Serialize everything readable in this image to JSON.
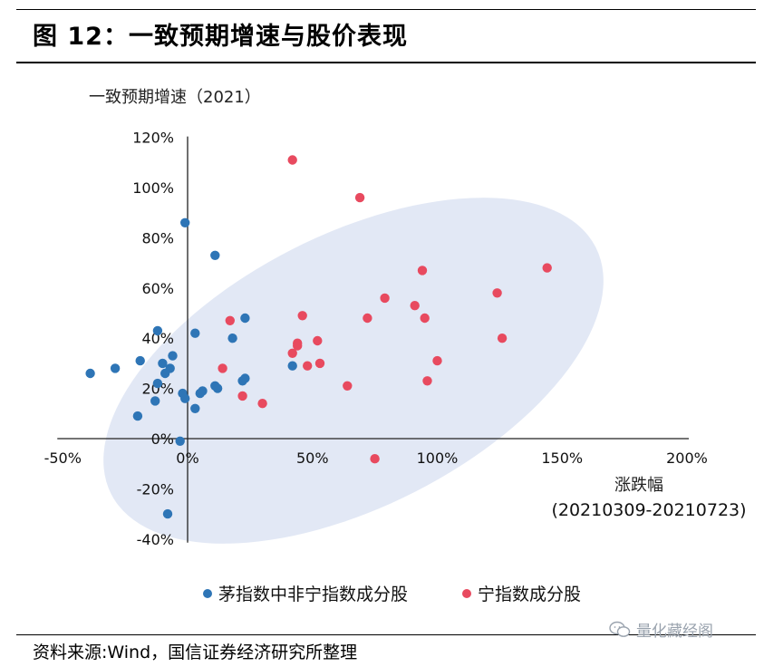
{
  "figure": {
    "title": "图 12：一致预期增速与股价表现",
    "source": "资料来源:Wind，国信证券经济研究所整理",
    "watermark": "量化藏经阁",
    "watermark_icon": "wechat-icon"
  },
  "chart_data": {
    "type": "scatter",
    "ylabel": "一致预期增速（2021）",
    "xlabel": "涨跌幅",
    "xlabel_sub": "(20210309-20210723)",
    "xlim": [
      -50,
      200
    ],
    "ylim": [
      -40,
      120
    ],
    "x_ticks": [
      "-50%",
      "0%",
      "50%",
      "100%",
      "150%",
      "200%"
    ],
    "y_ticks": [
      "120%",
      "100%",
      "80%",
      "60%",
      "40%",
      "20%",
      "0%",
      "-20%",
      "-40%"
    ],
    "x_unit": "%",
    "y_unit": "%",
    "grid": false,
    "legend_position": "bottom",
    "highlight_ellipse": true,
    "series": [
      {
        "name": "茅指数中非宁指数成分股",
        "color": "#2e75b6",
        "points": [
          [
            -39,
            26
          ],
          [
            -29,
            28
          ],
          [
            -19,
            31
          ],
          [
            -20,
            9
          ],
          [
            -12,
            43
          ],
          [
            -10,
            30
          ],
          [
            -9,
            26
          ],
          [
            -7,
            28
          ],
          [
            -6,
            33
          ],
          [
            -13,
            15
          ],
          [
            -12,
            22
          ],
          [
            -2,
            18
          ],
          [
            -1,
            16
          ],
          [
            -1,
            86
          ],
          [
            3,
            12
          ],
          [
            3,
            42
          ],
          [
            5,
            18
          ],
          [
            6,
            19
          ],
          [
            11,
            21
          ],
          [
            12,
            20
          ],
          [
            11,
            73
          ],
          [
            18,
            40
          ],
          [
            22,
            23
          ],
          [
            23,
            24
          ],
          [
            23,
            48
          ],
          [
            42,
            29
          ],
          [
            -3,
            -1
          ],
          [
            -8,
            -30
          ]
        ]
      },
      {
        "name": "宁指数成分股",
        "color": "#e84a5f",
        "points": [
          [
            42,
            111
          ],
          [
            69,
            96
          ],
          [
            14,
            28
          ],
          [
            17,
            47
          ],
          [
            22,
            17
          ],
          [
            30,
            14
          ],
          [
            42,
            34
          ],
          [
            44,
            37
          ],
          [
            44,
            38
          ],
          [
            46,
            49
          ],
          [
            48,
            29
          ],
          [
            52,
            39
          ],
          [
            53,
            30
          ],
          [
            64,
            21
          ],
          [
            72,
            48
          ],
          [
            79,
            56
          ],
          [
            91,
            53
          ],
          [
            94,
            67
          ],
          [
            95,
            48
          ],
          [
            96,
            23
          ],
          [
            100,
            31
          ],
          [
            124,
            58
          ],
          [
            126,
            40
          ],
          [
            144,
            68
          ],
          [
            75,
            -8
          ]
        ]
      }
    ]
  }
}
